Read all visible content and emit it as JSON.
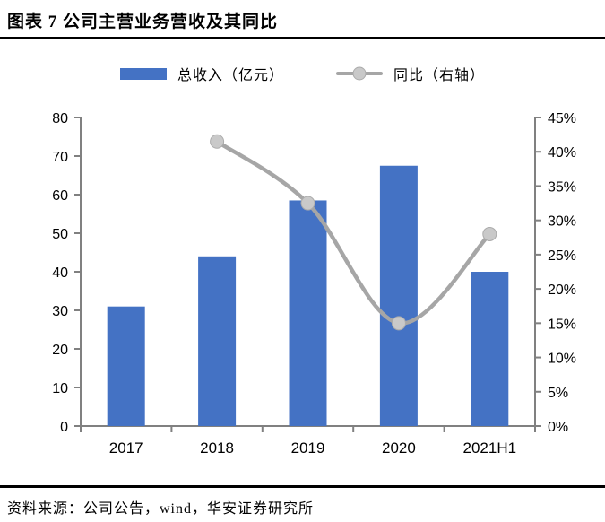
{
  "header": {
    "title": "图表 7 公司主营业务营收及其同比"
  },
  "legend": {
    "items": [
      {
        "label": "总收入（亿元）",
        "swatch": "bar-swatch"
      },
      {
        "label": "同比（右轴）",
        "swatch": "line-marker-swatch"
      }
    ],
    "position": "top"
  },
  "colors": {
    "bar": "#4472C4",
    "line": "#A6A6A6",
    "marker_fill": "#C9C9C9",
    "marker_stroke": "#ABABAB",
    "axis": "#808080",
    "rule": "#000000",
    "text": "#000000"
  },
  "chart_data": {
    "type": "combo",
    "title": "图表 7 公司主营业务营收及其同比",
    "categories": [
      "2017",
      "2018",
      "2019",
      "2020",
      "2021H1"
    ],
    "series": [
      {
        "name": "总收入（亿元）",
        "type": "bar",
        "axis": "left",
        "values": [
          31,
          44,
          58.5,
          67.5,
          40
        ]
      },
      {
        "name": "同比（右轴）",
        "type": "line",
        "axis": "right",
        "smooth": true,
        "values": [
          null,
          41.5,
          32.5,
          15,
          28
        ]
      }
    ],
    "left_axis": {
      "min": 0,
      "max": 80,
      "step": 10,
      "tick_labels": [
        "0",
        "10",
        "20",
        "30",
        "40",
        "50",
        "60",
        "70",
        "80"
      ]
    },
    "right_axis": {
      "min": 0,
      "max": 45,
      "step": 5,
      "tick_labels": [
        "0%",
        "5%",
        "10%",
        "15%",
        "20%",
        "25%",
        "30%",
        "35%",
        "40%",
        "45%"
      ]
    },
    "grid": false,
    "legend_position": "top"
  },
  "footer": {
    "source": "资料来源：公司公告，wind，华安证券研究所"
  }
}
